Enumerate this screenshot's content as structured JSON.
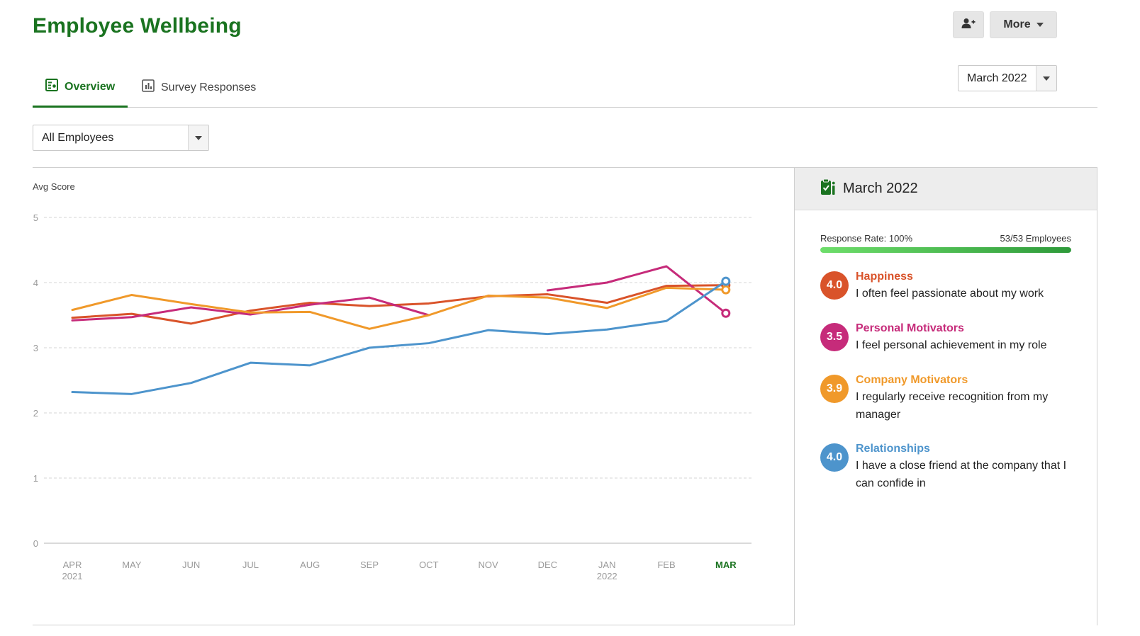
{
  "header": {
    "title": "Employee Wellbeing",
    "more_label": "More"
  },
  "tabs": [
    {
      "label": "Overview",
      "active": true
    },
    {
      "label": "Survey Responses",
      "active": false
    }
  ],
  "month_select": {
    "value": "March 2022"
  },
  "employee_select": {
    "value": "All Employees"
  },
  "side": {
    "title": "March 2022",
    "response_rate_label": "Response Rate: 100%",
    "response_count": "53/53 Employees",
    "response_rate": 1.0,
    "metrics": [
      {
        "score": "4.0",
        "name": "Happiness",
        "desc": "I often feel passionate about my work",
        "color": "#d9532a"
      },
      {
        "score": "3.5",
        "name": "Personal Motivators",
        "desc": "I feel personal achievement in my role",
        "color": "#c62b7a"
      },
      {
        "score": "3.9",
        "name": "Company Motivators",
        "desc": "I regularly receive recognition from my manager",
        "color": "#f0992a"
      },
      {
        "score": "4.0",
        "name": "Relationships",
        "desc": "I have a close friend at the company that I can confide in",
        "color": "#4d94cc"
      }
    ]
  },
  "colors": {
    "brand": "#1a7320",
    "grid": "#d6d6d6",
    "axis": "#9a9a9a"
  },
  "chart_data": {
    "type": "line",
    "ylabel": "Avg Score",
    "ylim": [
      0,
      5
    ],
    "yticks": [
      0,
      1,
      2,
      3,
      4,
      5
    ],
    "categories": [
      "APR",
      "MAY",
      "JUN",
      "JUL",
      "AUG",
      "SEP",
      "OCT",
      "NOV",
      "DEC",
      "JAN",
      "FEB",
      "MAR"
    ],
    "category_years": [
      "2021",
      "",
      "",
      "",
      "",
      "",
      "",
      "",
      "",
      "2022",
      "",
      ""
    ],
    "highlight_category": "MAR",
    "series": [
      {
        "name": "Happiness",
        "color": "#d9532a",
        "values": [
          3.46,
          3.52,
          3.37,
          3.57,
          3.69,
          3.64,
          3.68,
          3.79,
          3.82,
          3.69,
          3.95,
          3.96
        ]
      },
      {
        "name": "Personal Motivators",
        "color": "#c62b7a",
        "values": [
          3.42,
          3.47,
          3.62,
          3.51,
          3.66,
          3.77,
          3.5,
          null,
          3.88,
          4.0,
          4.25,
          3.53
        ]
      },
      {
        "name": "Company Motivators",
        "color": "#f0992a",
        "values": [
          3.58,
          3.81,
          3.67,
          3.54,
          3.55,
          3.29,
          3.5,
          3.8,
          3.77,
          3.61,
          3.92,
          3.89
        ]
      },
      {
        "name": "Relationships",
        "color": "#4d94cc",
        "values": [
          2.32,
          2.29,
          2.46,
          2.77,
          2.73,
          3.0,
          3.07,
          3.27,
          3.21,
          3.28,
          3.41,
          4.02
        ]
      }
    ]
  }
}
